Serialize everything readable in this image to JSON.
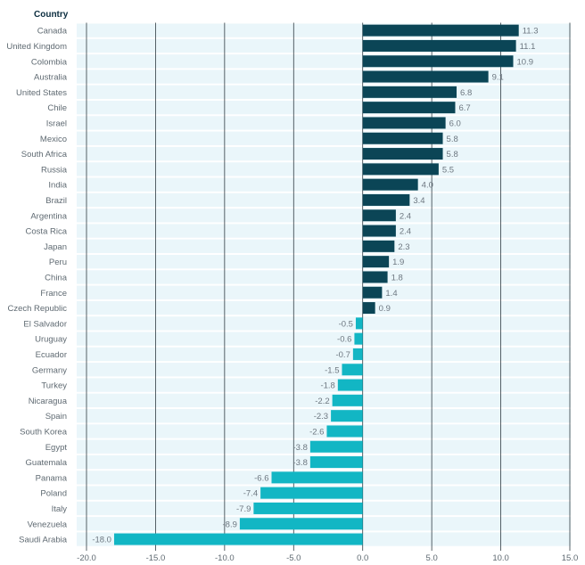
{
  "chart_data": {
    "type": "bar",
    "orientation": "horizontal",
    "category_header": "Country",
    "categories": [
      "Canada",
      "United Kingdom",
      "Colombia",
      "Australia",
      "United States",
      "Chile",
      "Israel",
      "Mexico",
      "South Africa",
      "Russia",
      "India",
      "Brazil",
      "Argentina",
      "Costa Rica",
      "Japan",
      "Peru",
      "China",
      "France",
      "Czech Republic",
      "El Salvador",
      "Uruguay",
      "Ecuador",
      "Germany",
      "Turkey",
      "Nicaragua",
      "Spain",
      "South Korea",
      "Egypt",
      "Guatemala",
      "Panama",
      "Poland",
      "Italy",
      "Venezuela",
      "Saudi Arabia"
    ],
    "values": [
      11.3,
      11.1,
      10.9,
      9.1,
      6.8,
      6.7,
      6.0,
      5.8,
      5.8,
      5.5,
      4.0,
      3.4,
      2.4,
      2.4,
      2.3,
      1.9,
      1.8,
      1.4,
      0.9,
      -0.5,
      -0.6,
      -0.7,
      -1.5,
      -1.8,
      -2.2,
      -2.3,
      -2.6,
      -3.8,
      -3.8,
      -6.6,
      -7.4,
      -7.9,
      -8.9,
      -18.0
    ],
    "value_labels": [
      "11.3",
      "11.1",
      "10.9",
      "9.1",
      "6.8",
      "6.7",
      "6.0",
      "5.8",
      "5.8",
      "5.5",
      "4.0",
      "3.4",
      "2.4",
      "2.4",
      "2.3",
      "1.9",
      "1.8",
      "1.4",
      "0.9",
      "-0.5",
      "-0.6",
      "-0.7",
      "-1.5",
      "-1.8",
      "-2.2",
      "-2.3",
      "-2.6",
      "-3.8",
      "-3.8",
      "-6.6",
      "-7.4",
      "-7.9",
      "-8.9",
      "-18.0"
    ],
    "xlim": [
      -20,
      15
    ],
    "xticks": [
      -20,
      -15,
      -10,
      -5,
      0,
      5,
      10,
      15
    ],
    "xtick_labels": [
      "-20.0",
      "-15.0",
      "-10.0",
      "-5.0",
      "0.0",
      "5.0",
      "10.0",
      "15.0"
    ],
    "grid": "vertical",
    "colors": {
      "positive": "#0b4556",
      "negative": "#12b6c4",
      "row_background": "#eaf6fa",
      "grid": "#2f3b42"
    }
  }
}
